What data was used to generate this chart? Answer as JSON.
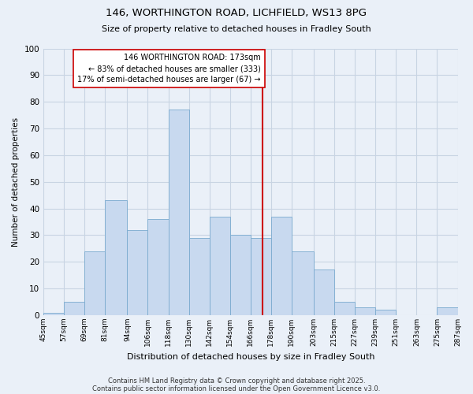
{
  "title1": "146, WORTHINGTON ROAD, LICHFIELD, WS13 8PG",
  "title2": "Size of property relative to detached houses in Fradley South",
  "xlabel": "Distribution of detached houses by size in Fradley South",
  "ylabel": "Number of detached properties",
  "bin_edges": [
    45,
    57,
    69,
    81,
    94,
    106,
    118,
    130,
    142,
    154,
    166,
    178,
    190,
    203,
    215,
    227,
    239,
    251,
    263,
    275,
    287
  ],
  "counts": [
    1,
    5,
    24,
    43,
    32,
    36,
    77,
    29,
    37,
    30,
    29,
    37,
    24,
    17,
    5,
    3,
    2,
    0,
    0,
    3
  ],
  "bar_facecolor": "#c8d9ef",
  "bar_edgecolor": "#7aaacf",
  "vline_x": 173,
  "vline_color": "#cc0000",
  "annotation_text": "146 WORTHINGTON ROAD: 173sqm\n← 83% of detached houses are smaller (333)\n17% of semi-detached houses are larger (67) →",
  "annotation_box_edgecolor": "#cc0000",
  "annotation_box_facecolor": "#ffffff",
  "ylim": [
    0,
    100
  ],
  "yticks": [
    0,
    10,
    20,
    30,
    40,
    50,
    60,
    70,
    80,
    90,
    100
  ],
  "grid_color": "#c8d4e3",
  "background_color": "#eaf0f8",
  "footnote1": "Contains HM Land Registry data © Crown copyright and database right 2025.",
  "footnote2": "Contains public sector information licensed under the Open Government Licence v3.0.",
  "tick_labels": [
    "45sqm",
    "57sqm",
    "69sqm",
    "81sqm",
    "94sqm",
    "106sqm",
    "118sqm",
    "130sqm",
    "142sqm",
    "154sqm",
    "166sqm",
    "178sqm",
    "190sqm",
    "203sqm",
    "215sqm",
    "227sqm",
    "239sqm",
    "251sqm",
    "263sqm",
    "275sqm",
    "287sqm"
  ]
}
